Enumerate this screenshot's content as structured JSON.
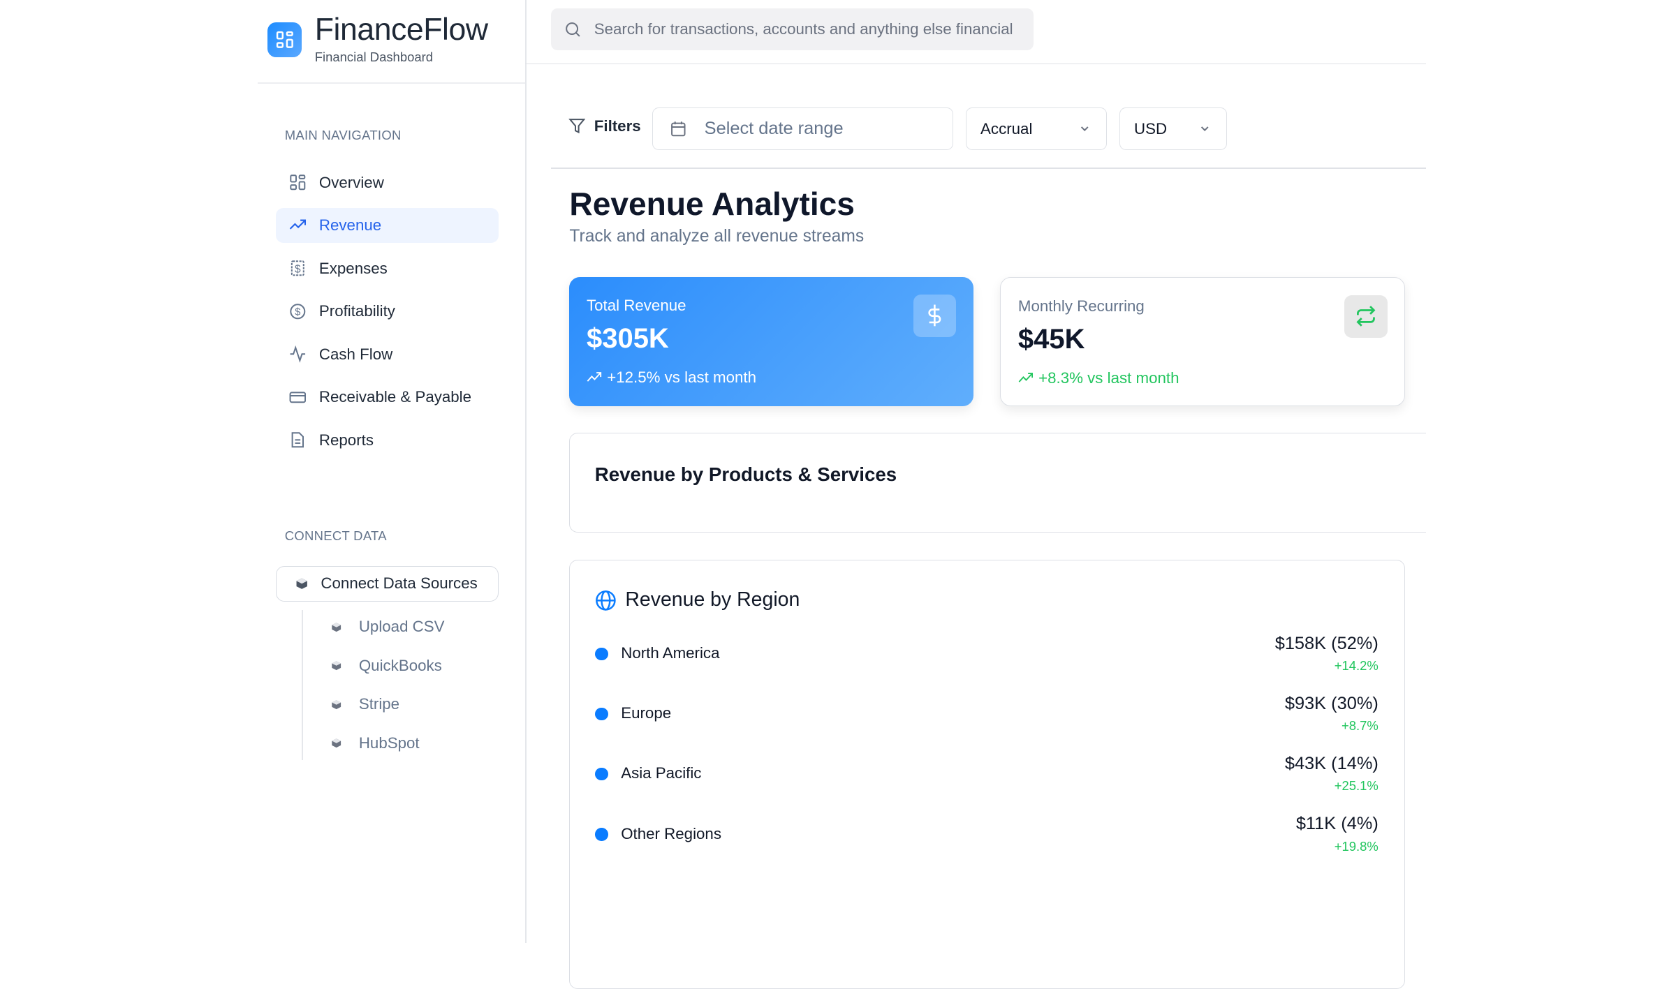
{
  "app": {
    "name": "FinanceFlow",
    "subtitle": "Financial Dashboard"
  },
  "search": {
    "placeholder": "Search for transactions, accounts and anything else financial"
  },
  "sidebar": {
    "main_label": "MAIN NAVIGATION",
    "items": [
      {
        "label": "Overview",
        "icon": "grid-icon"
      },
      {
        "label": "Revenue",
        "icon": "trending-up-icon",
        "active": true
      },
      {
        "label": "Expenses",
        "icon": "receipt-icon"
      },
      {
        "label": "Profitability",
        "icon": "dollar-circle-icon"
      },
      {
        "label": "Cash Flow",
        "icon": "activity-icon"
      },
      {
        "label": "Receivable & Payable",
        "icon": "credit-card-icon"
      },
      {
        "label": "Reports",
        "icon": "file-text-icon"
      }
    ],
    "connect_label": "CONNECT DATA",
    "connect_button": "Connect Data Sources",
    "sources": [
      "Upload CSV",
      "QuickBooks",
      "Stripe",
      "HubSpot"
    ]
  },
  "filters": {
    "label": "Filters",
    "date_placeholder": "Select date range",
    "basis": "Accrual",
    "currency": "USD"
  },
  "page": {
    "title": "Revenue Analytics",
    "subtitle": "Track and analyze all revenue streams"
  },
  "cards": [
    {
      "title": "Total Revenue",
      "value": "$305K",
      "change": "+12.5% vs last month",
      "icon": "dollar-icon"
    },
    {
      "title": "Monthly Recurring",
      "value": "$45K",
      "change": "+8.3% vs last month",
      "icon": "repeat-icon"
    }
  ],
  "products": {
    "title": "Revenue by Products & Services"
  },
  "regions": {
    "title": "Revenue by Region",
    "rows": [
      {
        "name": "North America",
        "value": "$158K (52%)",
        "change": "+14.2%"
      },
      {
        "name": "Europe",
        "value": "$93K (30%)",
        "change": "+8.7%"
      },
      {
        "name": "Asia Pacific",
        "value": "$43K (14%)",
        "change": "+25.1%"
      },
      {
        "name": "Other Regions",
        "value": "$11K (4%)",
        "change": "+19.8%"
      }
    ]
  },
  "colors": {
    "accent": "#2563eb",
    "positive": "#22c55e",
    "dot": "#0a7cff"
  }
}
